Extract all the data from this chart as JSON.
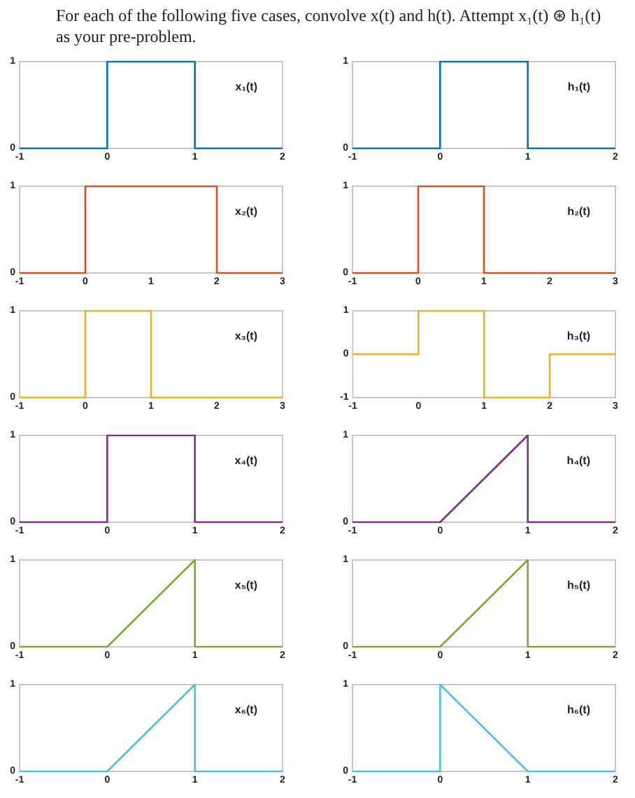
{
  "chart_data": [
    {
      "type": "line",
      "title": "For each of the following five cases, convolve x(t) and h(t). Attempt x₁(t) ⊛ h₁(t) as your pre-problem.",
      "x": [
        -1,
        0,
        0,
        1,
        1,
        2
      ],
      "series": [
        {
          "name": "x₁(t)",
          "color": "#0072bd",
          "values": [
            0,
            0,
            1,
            1,
            0,
            0
          ]
        }
      ],
      "xlim": [
        -1,
        2
      ],
      "xticks": [
        -1,
        0,
        1,
        2
      ],
      "ylim": [
        0,
        1
      ],
      "yticks": [
        0,
        1
      ],
      "grid": false,
      "marker": "none"
    },
    {
      "type": "line",
      "x": [
        -1,
        0,
        0,
        1,
        1,
        2
      ],
      "series": [
        {
          "name": "h₁(t)",
          "color": "#0072bd",
          "values": [
            0,
            0,
            1,
            1,
            0,
            0
          ]
        }
      ],
      "xlim": [
        -1,
        2
      ],
      "xticks": [
        -1,
        0,
        1,
        2
      ],
      "ylim": [
        0,
        1
      ],
      "yticks": [
        0,
        1
      ],
      "grid": false,
      "marker": "none"
    },
    {
      "type": "line",
      "x": [
        -1,
        0,
        0,
        2,
        2,
        3
      ],
      "series": [
        {
          "name": "x₂(t)",
          "color": "#d95319",
          "values": [
            0,
            0,
            1,
            1,
            0,
            0
          ]
        }
      ],
      "xlim": [
        -1,
        3
      ],
      "xticks": [
        -1,
        0,
        1,
        2,
        3
      ],
      "ylim": [
        0,
        1
      ],
      "yticks": [
        0,
        1
      ],
      "grid": false,
      "marker": "none"
    },
    {
      "type": "line",
      "x": [
        -1,
        0,
        0,
        1,
        1,
        3
      ],
      "series": [
        {
          "name": "h₂(t)",
          "color": "#d95319",
          "values": [
            0,
            0,
            1,
            1,
            0,
            0
          ]
        }
      ],
      "xlim": [
        -1,
        3
      ],
      "xticks": [
        -1,
        0,
        1,
        2,
        3
      ],
      "ylim": [
        0,
        1
      ],
      "yticks": [
        0,
        1
      ],
      "grid": false,
      "marker": "none"
    },
    {
      "type": "line",
      "x": [
        -1,
        0,
        0,
        1,
        1,
        3
      ],
      "series": [
        {
          "name": "x₃(t)",
          "color": "#edb120",
          "values": [
            0,
            0,
            1,
            1,
            0,
            0
          ]
        }
      ],
      "xlim": [
        -1,
        3
      ],
      "xticks": [
        -1,
        0,
        1,
        2,
        3
      ],
      "ylim": [
        0,
        1
      ],
      "yticks": [
        0,
        1
      ],
      "grid": false,
      "marker": "none"
    },
    {
      "type": "line",
      "x": [
        -1,
        0,
        0,
        1,
        1,
        2,
        2,
        3
      ],
      "series": [
        {
          "name": "h₃(t)",
          "color": "#edb120",
          "values": [
            0,
            0,
            1,
            1,
            -1,
            -1,
            0,
            0
          ]
        }
      ],
      "xlim": [
        -1,
        3
      ],
      "xticks": [
        -1,
        0,
        1,
        2,
        3
      ],
      "ylim": [
        -1,
        1
      ],
      "yticks": [
        -1,
        0,
        1
      ],
      "grid": false,
      "marker": "none"
    },
    {
      "type": "line",
      "x": [
        -1,
        0,
        0,
        1,
        1,
        2
      ],
      "series": [
        {
          "name": "x₄(t)",
          "color": "#7e2f8e",
          "values": [
            0,
            0,
            1,
            1,
            0,
            0
          ]
        }
      ],
      "xlim": [
        -1,
        2
      ],
      "xticks": [
        -1,
        0,
        1,
        2
      ],
      "ylim": [
        0,
        1
      ],
      "yticks": [
        0,
        1
      ],
      "grid": false,
      "marker": "none"
    },
    {
      "type": "line",
      "x": [
        -1,
        0,
        1,
        1,
        2
      ],
      "series": [
        {
          "name": "h₄(t)",
          "color": "#7e2f8e",
          "values": [
            0,
            0,
            1,
            0,
            0
          ]
        }
      ],
      "xlim": [
        -1,
        2
      ],
      "xticks": [
        -1,
        0,
        1,
        2
      ],
      "ylim": [
        0,
        1
      ],
      "yticks": [
        0,
        1
      ],
      "grid": false,
      "marker": "none"
    },
    {
      "type": "line",
      "x": [
        -1,
        0,
        1,
        1,
        2
      ],
      "series": [
        {
          "name": "x₅(t)",
          "color": "#77ac30",
          "values": [
            0,
            0,
            1,
            0,
            0
          ]
        }
      ],
      "xlim": [
        -1,
        2
      ],
      "xticks": [
        -1,
        0,
        1,
        2
      ],
      "ylim": [
        0,
        1
      ],
      "yticks": [
        0,
        1
      ],
      "grid": false,
      "marker": "none"
    },
    {
      "type": "line",
      "x": [
        -1,
        0,
        1,
        1,
        2
      ],
      "series": [
        {
          "name": "h₅(t)",
          "color": "#77ac30",
          "values": [
            0,
            0,
            1,
            0,
            0
          ]
        }
      ],
      "xlim": [
        -1,
        2
      ],
      "xticks": [
        -1,
        0,
        1,
        2
      ],
      "ylim": [
        0,
        1
      ],
      "yticks": [
        0,
        1
      ],
      "grid": false,
      "marker": "none"
    },
    {
      "type": "line",
      "x": [
        -1,
        0,
        1,
        1,
        2
      ],
      "series": [
        {
          "name": "x₆(t)",
          "color": "#4dbeee",
          "values": [
            0,
            0,
            1,
            0,
            0
          ]
        }
      ],
      "xlim": [
        -1,
        2
      ],
      "xticks": [
        -1,
        0,
        1,
        2
      ],
      "ylim": [
        0,
        1
      ],
      "yticks": [
        0,
        1
      ],
      "grid": false,
      "marker": "none"
    },
    {
      "type": "line",
      "x": [
        -1,
        0,
        0,
        1,
        2
      ],
      "series": [
        {
          "name": "h₆(t)",
          "color": "#4dbeee",
          "values": [
            0,
            0,
            1,
            0,
            0
          ]
        }
      ],
      "xlim": [
        -1,
        2
      ],
      "xticks": [
        -1,
        0,
        1,
        2
      ],
      "ylim": [
        0,
        1
      ],
      "yticks": [
        0,
        1
      ],
      "grid": false,
      "marker": "none"
    }
  ]
}
